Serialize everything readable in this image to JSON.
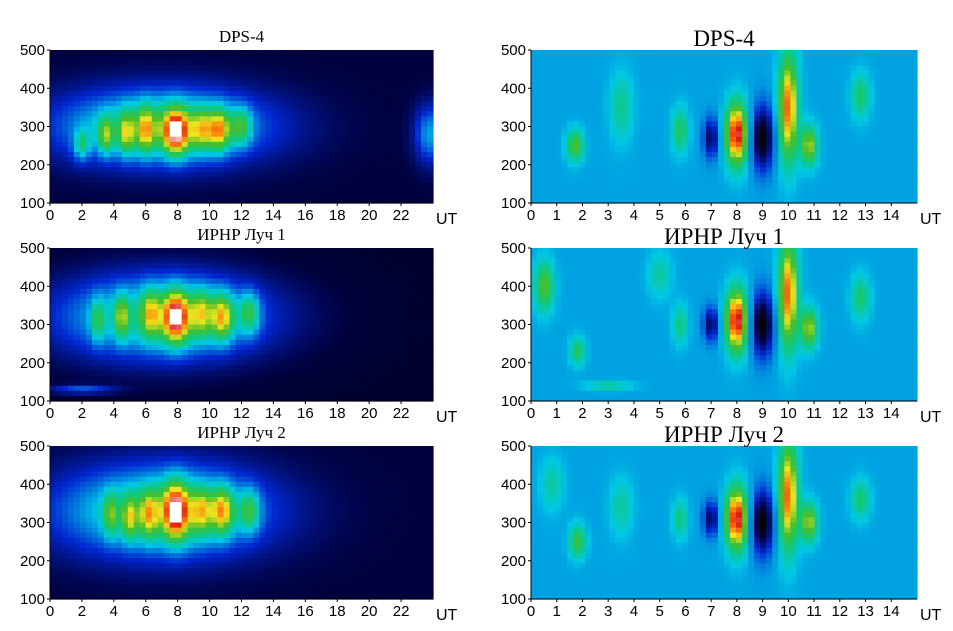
{
  "chart_data": [
    {
      "type": "heatmap",
      "title": "DPS-4",
      "xunit": "UT",
      "xticks": [
        0,
        2,
        4,
        6,
        8,
        10,
        12,
        14,
        16,
        18,
        20,
        22
      ],
      "yticks": [
        100,
        200,
        300,
        400,
        500
      ],
      "xlim": [
        0,
        24
      ],
      "ylim": [
        100,
        500
      ],
      "colormap": "jet",
      "background_level": 0.1,
      "blobs": [
        {
          "x": 7,
          "y": 300,
          "sx": 4.8,
          "sy": 70,
          "v": 0.45
        },
        {
          "x": 2,
          "y": 250,
          "sx": 0.35,
          "sy": 28,
          "v": 0.25
        },
        {
          "x": 3.5,
          "y": 275,
          "sx": 0.35,
          "sy": 35,
          "v": 0.3
        },
        {
          "x": 4.8,
          "y": 280,
          "sx": 0.35,
          "sy": 40,
          "v": 0.3
        },
        {
          "x": 6.0,
          "y": 290,
          "sx": 0.4,
          "sy": 45,
          "v": 0.32
        },
        {
          "x": 7.9,
          "y": 285,
          "sx": 0.6,
          "sy": 45,
          "v": 0.55
        },
        {
          "x": 9.5,
          "y": 290,
          "sx": 0.45,
          "sy": 40,
          "v": 0.28
        },
        {
          "x": 10.6,
          "y": 290,
          "sx": 0.5,
          "sy": 40,
          "v": 0.42
        },
        {
          "x": 12.0,
          "y": 300,
          "sx": 0.45,
          "sy": 35,
          "v": 0.28
        },
        {
          "x": 23.8,
          "y": 280,
          "sx": 0.7,
          "sy": 55,
          "v": 0.28
        }
      ]
    },
    {
      "type": "heatmap",
      "title": "ИРНР Луч 1",
      "xunit": "UT",
      "xticks": [
        0,
        2,
        4,
        6,
        8,
        10,
        12,
        14,
        16,
        18,
        20,
        22
      ],
      "yticks": [
        100,
        200,
        300,
        400,
        500
      ],
      "xlim": [
        0,
        24
      ],
      "ylim": [
        100,
        500
      ],
      "colormap": "jet",
      "background_level": 0.08,
      "blobs": [
        {
          "x": 7,
          "y": 320,
          "sx": 4.8,
          "sy": 80,
          "v": 0.45
        },
        {
          "x": 2,
          "y": 130,
          "sx": 1.5,
          "sy": 8,
          "v": 0.22
        },
        {
          "x": 3.0,
          "y": 310,
          "sx": 0.3,
          "sy": 40,
          "v": 0.22
        },
        {
          "x": 4.5,
          "y": 320,
          "sx": 0.3,
          "sy": 40,
          "v": 0.28
        },
        {
          "x": 6.3,
          "y": 330,
          "sx": 0.4,
          "sy": 45,
          "v": 0.3
        },
        {
          "x": 7.9,
          "y": 320,
          "sx": 0.6,
          "sy": 50,
          "v": 0.55
        },
        {
          "x": 9.5,
          "y": 330,
          "sx": 0.45,
          "sy": 45,
          "v": 0.3
        },
        {
          "x": 10.8,
          "y": 320,
          "sx": 0.5,
          "sy": 45,
          "v": 0.42
        },
        {
          "x": 12.5,
          "y": 330,
          "sx": 0.45,
          "sy": 40,
          "v": 0.3
        }
      ]
    },
    {
      "type": "heatmap",
      "title": "ИРНР Луч 2",
      "xunit": "UT",
      "xticks": [
        0,
        2,
        4,
        6,
        8,
        10,
        12,
        14,
        16,
        18,
        20,
        22
      ],
      "yticks": [
        100,
        200,
        300,
        400,
        500
      ],
      "xlim": [
        0,
        24
      ],
      "ylim": [
        100,
        500
      ],
      "colormap": "jet",
      "background_level": 0.1,
      "blobs": [
        {
          "x": 7,
          "y": 330,
          "sx": 4.8,
          "sy": 85,
          "v": 0.45
        },
        {
          "x": 3.8,
          "y": 320,
          "sx": 0.3,
          "sy": 40,
          "v": 0.25
        },
        {
          "x": 5.0,
          "y": 310,
          "sx": 0.35,
          "sy": 40,
          "v": 0.28
        },
        {
          "x": 6.2,
          "y": 320,
          "sx": 0.4,
          "sy": 45,
          "v": 0.3
        },
        {
          "x": 7.9,
          "y": 330,
          "sx": 0.6,
          "sy": 55,
          "v": 0.55
        },
        {
          "x": 9.5,
          "y": 330,
          "sx": 0.45,
          "sy": 45,
          "v": 0.3
        },
        {
          "x": 10.8,
          "y": 330,
          "sx": 0.5,
          "sy": 45,
          "v": 0.42
        },
        {
          "x": 12.5,
          "y": 330,
          "sx": 0.45,
          "sy": 40,
          "v": 0.3
        }
      ]
    },
    {
      "type": "heatmap",
      "title": "DPS-4",
      "xunit": "UT",
      "xticks": [
        0,
        1,
        2,
        3,
        4,
        5,
        6,
        7,
        8,
        9,
        10,
        11,
        12,
        13,
        14
      ],
      "yticks": [
        100,
        200,
        300,
        400,
        500
      ],
      "xlim": [
        0,
        15
      ],
      "ylim": [
        100,
        500
      ],
      "colormap": "jet",
      "background_level": 0.38,
      "blobs": [
        {
          "x": 1.7,
          "y": 250,
          "sx": 0.22,
          "sy": 28,
          "v": 0.28
        },
        {
          "x": 3.5,
          "y": 350,
          "sx": 0.3,
          "sy": 60,
          "v": 0.14
        },
        {
          "x": 5.8,
          "y": 290,
          "sx": 0.22,
          "sy": 40,
          "v": 0.2
        },
        {
          "x": 7.0,
          "y": 270,
          "sx": 0.2,
          "sy": 35,
          "v": -0.25
        },
        {
          "x": 8.0,
          "y": 280,
          "sx": 0.28,
          "sy": 55,
          "v": 0.6
        },
        {
          "x": 9.0,
          "y": 270,
          "sx": 0.28,
          "sy": 55,
          "v": -0.38
        },
        {
          "x": 10.0,
          "y": 350,
          "sx": 0.25,
          "sy": 95,
          "v": 0.5
        },
        {
          "x": 10.8,
          "y": 250,
          "sx": 0.22,
          "sy": 35,
          "v": 0.35
        },
        {
          "x": 12.8,
          "y": 380,
          "sx": 0.25,
          "sy": 40,
          "v": 0.18
        }
      ]
    },
    {
      "type": "heatmap",
      "title": "ИРНР Луч 1",
      "xunit": "UT",
      "xticks": [
        0,
        1,
        2,
        3,
        4,
        5,
        6,
        7,
        8,
        9,
        10,
        11,
        12,
        13,
        14
      ],
      "yticks": [
        100,
        200,
        300,
        400,
        500
      ],
      "xlim": [
        0,
        15
      ],
      "ylim": [
        100,
        500
      ],
      "colormap": "jet",
      "background_level": 0.38,
      "blobs": [
        {
          "x": 0.5,
          "y": 400,
          "sx": 0.25,
          "sy": 45,
          "v": 0.28
        },
        {
          "x": 1.8,
          "y": 230,
          "sx": 0.2,
          "sy": 25,
          "v": 0.2
        },
        {
          "x": 3.0,
          "y": 140,
          "sx": 0.6,
          "sy": 8,
          "v": 0.14
        },
        {
          "x": 5.0,
          "y": 430,
          "sx": 0.3,
          "sy": 40,
          "v": 0.12
        },
        {
          "x": 5.8,
          "y": 300,
          "sx": 0.2,
          "sy": 35,
          "v": 0.16
        },
        {
          "x": 7.0,
          "y": 300,
          "sx": 0.2,
          "sy": 30,
          "v": -0.25
        },
        {
          "x": 8.0,
          "y": 310,
          "sx": 0.28,
          "sy": 55,
          "v": 0.6
        },
        {
          "x": 9.0,
          "y": 300,
          "sx": 0.28,
          "sy": 55,
          "v": -0.38
        },
        {
          "x": 10.0,
          "y": 380,
          "sx": 0.25,
          "sy": 95,
          "v": 0.5
        },
        {
          "x": 10.8,
          "y": 290,
          "sx": 0.22,
          "sy": 35,
          "v": 0.35
        },
        {
          "x": 12.8,
          "y": 370,
          "sx": 0.25,
          "sy": 40,
          "v": 0.18
        }
      ]
    },
    {
      "type": "heatmap",
      "title": "ИРНР Луч 2",
      "xunit": "UT",
      "xticks": [
        0,
        1,
        2,
        3,
        4,
        5,
        6,
        7,
        8,
        9,
        10,
        11,
        12,
        13,
        14
      ],
      "yticks": [
        100,
        200,
        300,
        400,
        500
      ],
      "xlim": [
        0,
        15
      ],
      "ylim": [
        100,
        500
      ],
      "colormap": "jet",
      "background_level": 0.38,
      "blobs": [
        {
          "x": 0.8,
          "y": 400,
          "sx": 0.3,
          "sy": 45,
          "v": 0.12
        },
        {
          "x": 1.8,
          "y": 250,
          "sx": 0.22,
          "sy": 30,
          "v": 0.24
        },
        {
          "x": 3.5,
          "y": 340,
          "sx": 0.3,
          "sy": 50,
          "v": 0.12
        },
        {
          "x": 5.8,
          "y": 310,
          "sx": 0.2,
          "sy": 35,
          "v": 0.16
        },
        {
          "x": 7.0,
          "y": 310,
          "sx": 0.2,
          "sy": 30,
          "v": -0.25
        },
        {
          "x": 8.0,
          "y": 310,
          "sx": 0.28,
          "sy": 55,
          "v": 0.6
        },
        {
          "x": 9.0,
          "y": 300,
          "sx": 0.28,
          "sy": 55,
          "v": -0.38
        },
        {
          "x": 10.0,
          "y": 370,
          "sx": 0.25,
          "sy": 95,
          "v": 0.5
        },
        {
          "x": 10.8,
          "y": 300,
          "sx": 0.22,
          "sy": 35,
          "v": 0.35
        },
        {
          "x": 12.8,
          "y": 360,
          "sx": 0.25,
          "sy": 35,
          "v": 0.18
        }
      ]
    }
  ]
}
